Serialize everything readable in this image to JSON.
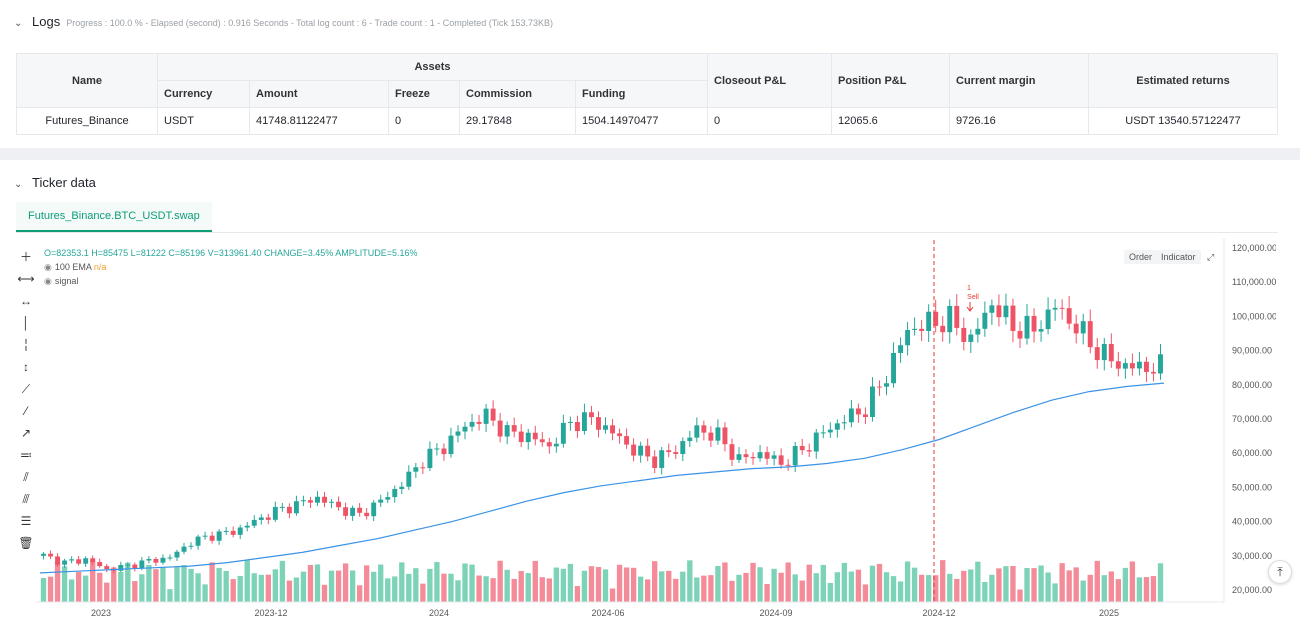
{
  "logs": {
    "title": "Logs",
    "subtitle": "Progress : 100.0 % - Elapsed (second) : 0.916  Seconds - Total log count : 6 - Trade count : 1 - Completed (Tick 153.73KB)",
    "table": {
      "group_headers": {
        "name": "Name",
        "assets": "Assets",
        "closeout": "Closeout P&L",
        "position": "Position P&L",
        "margin": "Current margin",
        "returns": "Estimated returns"
      },
      "sub_headers": [
        "Currency",
        "Amount",
        "Freeze",
        "Commission",
        "Funding"
      ],
      "row": {
        "name": "Futures_Binance",
        "currency": "USDT",
        "amount": "41748.81122477",
        "freeze": "0",
        "commission": "29.17848",
        "funding": "1504.14970477",
        "closeout": "0",
        "position": "12065.6",
        "margin": "9726.16",
        "returns": "USDT 13540.57122477"
      }
    }
  },
  "ticker": {
    "title": "Ticker data",
    "tab": "Futures_Binance.BTC_USDT.swap",
    "ohlc_line": "O=82353.1 H=85475 L=81222 C=85196 V=313961.40 CHANGE=3.45% AMPLITUDE=5.16%",
    "ema_label": "100 EMA",
    "ema_value": "n/a",
    "signal_label": "signal",
    "order_btn": "Order",
    "indicator_btn": "Indicator",
    "sell_marker": "Sell",
    "sell_count": "1",
    "scroll_icon": "arrow-up-to-line-icon"
  },
  "chart_data": {
    "type": "candlestick",
    "y_ticks": [
      "120,000.00",
      "110,000.00",
      "100,000.00",
      "90,000.00",
      "80,000.00",
      "70,000.00",
      "60,000.00",
      "50,000.00",
      "40,000.00",
      "30,000.00",
      "20,000.00"
    ],
    "x_ticks": [
      "2023",
      "2023-12",
      "2024",
      "2024-06",
      "2024-09",
      "2024-12",
      "2025"
    ],
    "ylim": [
      20000,
      120000
    ],
    "colors": {
      "up": "#26a69a",
      "down": "#ef5466",
      "ema": "#3b93e6",
      "signal": "#e53935"
    },
    "close_approx": [
      30000,
      28000,
      29000,
      26000,
      27000,
      28500,
      29500,
      34000,
      36000,
      37000,
      40000,
      43000,
      45000,
      47000,
      44000,
      42000,
      46000,
      51000,
      58000,
      62000,
      68000,
      71000,
      66000,
      65000,
      62000,
      69000,
      70000,
      66000,
      61000,
      58000,
      61000,
      67000,
      65000,
      58000,
      60000,
      57000,
      61000,
      66000,
      70000,
      73000,
      83000,
      96000,
      98000,
      99000,
      93000,
      104000,
      97000,
      96000,
      103000,
      97000,
      90000,
      86000,
      85000,
      85196
    ],
    "ema_approx": [
      25000,
      25500,
      26000,
      26500,
      27000,
      28000,
      29500,
      31000,
      33000,
      35000,
      37500,
      40000,
      43000,
      46000,
      48500,
      50500,
      52000,
      53500,
      54500,
      55500,
      56000,
      57000,
      58500,
      61000,
      64000,
      68000,
      72000,
      75500,
      78000,
      79500,
      80500
    ]
  }
}
